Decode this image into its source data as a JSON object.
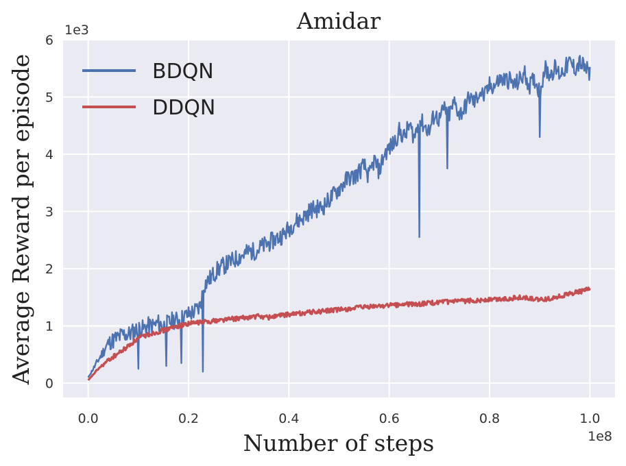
{
  "chart_data": {
    "type": "line",
    "title": "Amidar",
    "xlabel": "Number of steps",
    "ylabel": "Average Reward per episode",
    "x_offset_label": "1e8",
    "y_offset_label": "1e3",
    "xlim": [
      -0.05,
      1.05
    ],
    "ylim": [
      -0.25,
      6.0
    ],
    "x_ticks": [
      0.0,
      0.2,
      0.4,
      0.6,
      0.8,
      1.0
    ],
    "x_tick_labels": [
      "0.0",
      "0.2",
      "0.4",
      "0.6",
      "0.8",
      "1.0"
    ],
    "y_ticks": [
      0,
      1,
      2,
      3,
      4,
      5,
      6
    ],
    "y_tick_labels": [
      "0",
      "1",
      "2",
      "3",
      "4",
      "5",
      "6"
    ],
    "grid": true,
    "legend": "top-left",
    "series": [
      {
        "name": "BDQN",
        "color": "#4c72b0",
        "x": [
          0.0,
          0.01,
          0.02,
          0.03,
          0.04,
          0.05,
          0.06,
          0.07,
          0.08,
          0.09,
          0.1,
          0.11,
          0.12,
          0.13,
          0.14,
          0.15,
          0.16,
          0.17,
          0.18,
          0.19,
          0.2,
          0.21,
          0.22,
          0.225,
          0.23,
          0.24,
          0.25,
          0.26,
          0.27,
          0.28,
          0.29,
          0.3,
          0.31,
          0.32,
          0.33,
          0.34,
          0.35,
          0.36,
          0.37,
          0.38,
          0.39,
          0.4,
          0.41,
          0.42,
          0.43,
          0.44,
          0.45,
          0.46,
          0.47,
          0.48,
          0.49,
          0.5,
          0.51,
          0.52,
          0.53,
          0.54,
          0.55,
          0.56,
          0.57,
          0.58,
          0.59,
          0.6,
          0.61,
          0.62,
          0.63,
          0.64,
          0.65,
          0.66,
          0.67,
          0.68,
          0.69,
          0.7,
          0.71,
          0.72,
          0.73,
          0.74,
          0.75,
          0.76,
          0.77,
          0.78,
          0.79,
          0.8,
          0.81,
          0.82,
          0.83,
          0.84,
          0.85,
          0.86,
          0.87,
          0.88,
          0.89,
          0.9,
          0.91,
          0.92,
          0.93,
          0.94,
          0.95,
          0.96,
          0.97,
          0.98,
          0.99,
          1.0
        ],
        "y": [
          0.1,
          0.25,
          0.4,
          0.55,
          0.7,
          0.75,
          0.8,
          0.85,
          0.85,
          0.9,
          0.95,
          0.95,
          1.0,
          1.0,
          1.05,
          1.0,
          1.05,
          1.1,
          1.1,
          1.15,
          1.2,
          1.25,
          1.3,
          1.4,
          1.7,
          1.8,
          1.9,
          2.0,
          2.05,
          2.1,
          2.15,
          2.2,
          2.25,
          2.3,
          2.3,
          2.35,
          2.4,
          2.45,
          2.5,
          2.55,
          2.6,
          2.7,
          2.8,
          2.85,
          2.9,
          3.0,
          3.05,
          3.05,
          3.1,
          3.2,
          3.3,
          3.4,
          3.5,
          3.6,
          3.6,
          3.7,
          3.8,
          3.6,
          3.9,
          3.7,
          4.0,
          4.1,
          4.2,
          4.4,
          4.3,
          4.5,
          4.3,
          4.6,
          4.5,
          4.4,
          4.7,
          4.6,
          4.8,
          4.7,
          4.9,
          4.7,
          4.8,
          5.0,
          4.9,
          5.1,
          5.0,
          5.2,
          5.2,
          5.3,
          5.3,
          5.3,
          5.2,
          5.3,
          5.4,
          5.2,
          5.3,
          5.1,
          5.5,
          5.4,
          5.5,
          5.4,
          5.5,
          5.6,
          5.5,
          5.6,
          5.5,
          5.4
        ],
        "dips": [
          {
            "x": 0.1,
            "y": 0.25
          },
          {
            "x": 0.155,
            "y": 0.3
          },
          {
            "x": 0.185,
            "y": 0.35
          },
          {
            "x": 0.228,
            "y": 0.2
          },
          {
            "x": 0.66,
            "y": 2.55
          },
          {
            "x": 0.715,
            "y": 3.75
          },
          {
            "x": 0.9,
            "y": 4.3
          }
        ]
      },
      {
        "name": "DDQN",
        "color": "#c44e52",
        "x": [
          0.0,
          0.01,
          0.02,
          0.03,
          0.04,
          0.05,
          0.06,
          0.07,
          0.08,
          0.09,
          0.1,
          0.11,
          0.12,
          0.13,
          0.14,
          0.15,
          0.16,
          0.17,
          0.18,
          0.19,
          0.2,
          0.22,
          0.24,
          0.26,
          0.28,
          0.3,
          0.32,
          0.34,
          0.36,
          0.38,
          0.4,
          0.42,
          0.44,
          0.46,
          0.48,
          0.5,
          0.52,
          0.54,
          0.56,
          0.58,
          0.6,
          0.62,
          0.64,
          0.66,
          0.68,
          0.7,
          0.72,
          0.74,
          0.76,
          0.78,
          0.8,
          0.82,
          0.84,
          0.86,
          0.88,
          0.9,
          0.92,
          0.94,
          0.96,
          0.98,
          1.0
        ],
        "y": [
          0.05,
          0.15,
          0.25,
          0.32,
          0.4,
          0.46,
          0.52,
          0.58,
          0.65,
          0.72,
          0.78,
          0.82,
          0.85,
          0.88,
          0.9,
          0.92,
          0.95,
          0.97,
          1.0,
          1.02,
          1.04,
          1.06,
          1.08,
          1.1,
          1.12,
          1.13,
          1.15,
          1.17,
          1.15,
          1.18,
          1.2,
          1.22,
          1.24,
          1.25,
          1.27,
          1.28,
          1.3,
          1.32,
          1.33,
          1.35,
          1.36,
          1.37,
          1.38,
          1.38,
          1.4,
          1.41,
          1.42,
          1.43,
          1.44,
          1.45,
          1.46,
          1.47,
          1.48,
          1.5,
          1.48,
          1.45,
          1.48,
          1.52,
          1.56,
          1.6,
          1.65
        ]
      }
    ]
  }
}
